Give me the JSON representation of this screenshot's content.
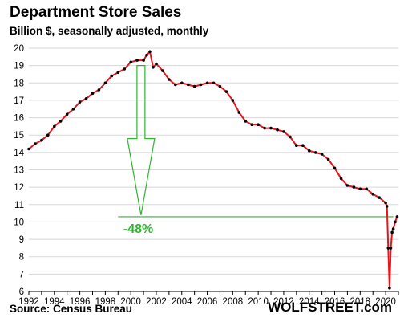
{
  "chart_data": {
    "type": "line",
    "title": "Department  Store Sales",
    "subtitle": "Billion $, seasonally adjusted, monthly",
    "xlabel": "",
    "ylabel": "",
    "xlim": [
      1992,
      2021
    ],
    "ylim": [
      6,
      20
    ],
    "x_ticks": [
      "1992",
      "1994",
      "1996",
      "1998",
      "2000",
      "2002",
      "2004",
      "2006",
      "2008",
      "2010",
      "2012",
      "2014",
      "2016",
      "2018",
      "2020"
    ],
    "y_ticks": [
      "6",
      "7",
      "8",
      "9",
      "10",
      "11",
      "12",
      "13",
      "14",
      "15",
      "16",
      "17",
      "18",
      "19",
      "20"
    ],
    "grid": "horizontal",
    "line_color": "#e8131b",
    "marker_color": "#000000",
    "series": [
      {
        "x": [
          1992.0,
          1992.5,
          1993.0,
          1993.5,
          1994.0,
          1994.5,
          1995.0,
          1995.5,
          1996.0,
          1996.5,
          1997.0,
          1997.5,
          1998.0,
          1998.5,
          1999.0,
          1999.5,
          2000.0,
          2000.5,
          2001.0,
          2001.25,
          2001.5,
          2001.75,
          2002.0,
          2002.5,
          2003.0,
          2003.5,
          2004.0,
          2004.5,
          2005.0,
          2005.5,
          2006.0,
          2006.5,
          2007.0,
          2007.5,
          2008.0,
          2008.5,
          2009.0,
          2009.5,
          2010.0,
          2010.5,
          2011.0,
          2011.5,
          2012.0,
          2012.5,
          2013.0,
          2013.5,
          2014.0,
          2014.5,
          2015.0,
          2015.5,
          2016.0,
          2016.5,
          2017.0,
          2017.5,
          2018.0,
          2018.5,
          2019.0,
          2019.5,
          2020.0,
          2020.1,
          2020.2,
          2020.3,
          2020.4,
          2020.5,
          2020.6,
          2020.75,
          2020.9
        ],
        "values": [
          14.2,
          14.5,
          14.7,
          15.0,
          15.5,
          15.8,
          16.2,
          16.5,
          16.9,
          17.1,
          17.4,
          17.6,
          18.0,
          18.4,
          18.6,
          18.8,
          19.2,
          19.3,
          19.3,
          19.6,
          19.8,
          18.9,
          19.1,
          18.7,
          18.2,
          17.9,
          18.0,
          17.9,
          17.8,
          17.9,
          18.0,
          18.0,
          17.8,
          17.5,
          17.0,
          16.3,
          15.8,
          15.6,
          15.6,
          15.4,
          15.4,
          15.3,
          15.2,
          14.9,
          14.4,
          14.4,
          14.1,
          14.0,
          13.9,
          13.6,
          13.1,
          12.5,
          12.1,
          12.0,
          11.9,
          11.9,
          11.6,
          11.4,
          11.1,
          10.9,
          8.5,
          6.2,
          8.5,
          9.4,
          9.6,
          10.0,
          10.3
        ]
      }
    ],
    "annotation": {
      "text": "-48%",
      "color": "#2fb42f",
      "arrow_from_year": 2000.8,
      "arrow_from_value": 19.0,
      "arrow_to_value": 10.3,
      "reference_level": 10.3
    }
  },
  "footer": {
    "source": "Source: Census Bureau",
    "brand": "WOLFSTREET.com"
  }
}
